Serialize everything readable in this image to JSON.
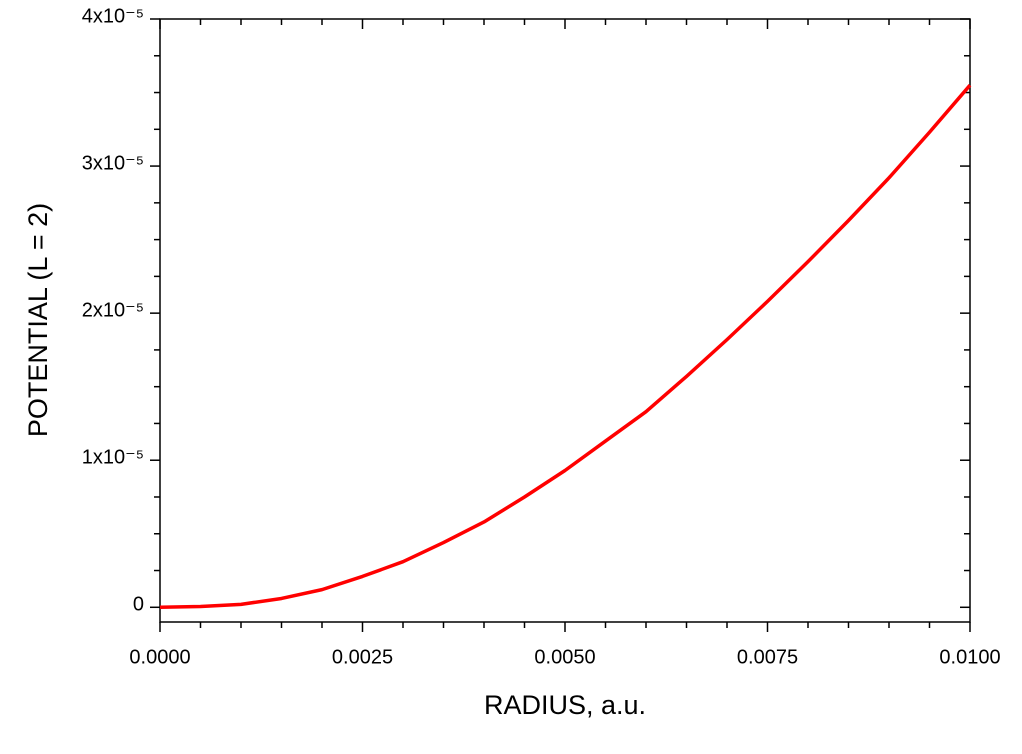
{
  "chart_data": {
    "type": "line",
    "x_label": "RADIUS, a.u.",
    "y_label": "POTENTIAL (L = 2)",
    "x": [
      0,
      0.0005,
      0.001,
      0.0015,
      0.002,
      0.0025,
      0.003,
      0.0035,
      0.004,
      0.0045,
      0.005,
      0.0055,
      0.006,
      0.0065,
      0.007,
      0.0075,
      0.008,
      0.0085,
      0.009,
      0.0095,
      0.01
    ],
    "series": [
      {
        "color": "#ff0000",
        "values": [
          0,
          5e-08,
          2e-07,
          6e-07,
          1.2e-06,
          2.1e-06,
          3.1e-06,
          4.4e-06,
          5.8e-06,
          7.5e-06,
          9.3e-06,
          1.13e-05,
          1.33e-05,
          1.57e-05,
          1.82e-05,
          2.08e-05,
          2.35e-05,
          2.63e-05,
          2.92e-05,
          3.23e-05,
          3.55e-05
        ]
      }
    ],
    "xlim": [
      0,
      0.01
    ],
    "ylim": [
      -1e-06,
      4e-05
    ],
    "xticks": [
      {
        "value": 0,
        "label": "0.0000"
      },
      0.0025,
      {
        "value": 0.005,
        "label": "0.0050"
      },
      0.0075,
      {
        "value": 0.01,
        "label": "0.0100"
      }
    ],
    "yticks": [
      0,
      {
        "value": 1e-05,
        "label": "1x10⁻⁵"
      },
      {
        "value": 2e-05,
        "label": "2x10⁻⁵"
      },
      {
        "value": 3e-05,
        "label": "3x10⁻⁵"
      },
      {
        "value": 4e-05,
        "label": "4x10⁻⁵"
      }
    ],
    "grid": false
  }
}
